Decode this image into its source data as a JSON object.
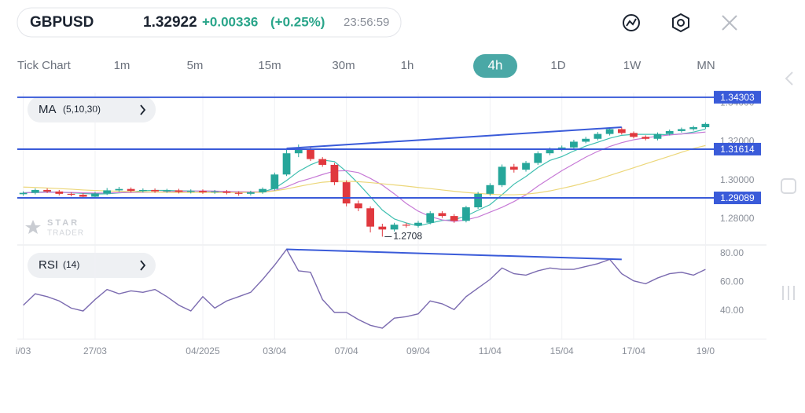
{
  "header": {
    "symbol": "GBPUSD",
    "price": "1.32922",
    "change": "+0.00336",
    "change_pct": "(+0.25%)",
    "time": "23:56:59"
  },
  "timeframes": {
    "items": [
      "Tick Chart",
      "1m",
      "5m",
      "15m",
      "30m",
      "1h",
      "4h",
      "1D",
      "1W",
      "MN"
    ],
    "active": "4h"
  },
  "watermark": {
    "line1": "STAR",
    "line2": "TRADER"
  },
  "chart_data": [
    {
      "type": "candlestick",
      "legend": {
        "label": "MA",
        "params": "(5,10,30)"
      },
      "categories": [
        "i/03",
        null,
        null,
        null,
        null,
        null,
        "27/03",
        null,
        null,
        null,
        null,
        null,
        null,
        null,
        null,
        "04/2025",
        null,
        null,
        null,
        null,
        null,
        "03/04",
        null,
        null,
        null,
        null,
        null,
        "07/04",
        null,
        null,
        null,
        null,
        null,
        "09/04",
        null,
        null,
        null,
        null,
        null,
        "11/04",
        null,
        null,
        null,
        null,
        null,
        "15/04",
        null,
        null,
        null,
        null,
        null,
        "17/04",
        null,
        null,
        null,
        null,
        null,
        "19/0"
      ],
      "open": [
        1.2928,
        1.2935,
        1.295,
        1.2942,
        1.293,
        1.2925,
        1.2915,
        1.2932,
        1.2948,
        1.2955,
        1.2945,
        1.295,
        1.2943,
        1.2948,
        1.294,
        1.2945,
        1.2938,
        1.2942,
        1.2935,
        1.293,
        1.2938,
        1.2955,
        1.303,
        1.314,
        1.3165,
        1.311,
        1.308,
        1.299,
        1.288,
        1.2855,
        1.276,
        1.2745,
        1.277,
        1.2765,
        1.278,
        1.283,
        1.2815,
        1.279,
        1.286,
        1.293,
        1.2975,
        1.307,
        1.3055,
        1.309,
        1.314,
        1.316,
        1.317,
        1.32,
        1.3215,
        1.324,
        1.3265,
        1.3245,
        1.3225,
        1.3215,
        1.324,
        1.3255,
        1.3265,
        1.3275
      ],
      "high": [
        1.2943,
        1.2958,
        1.2958,
        1.295,
        1.2938,
        1.2933,
        1.294,
        1.296,
        1.2966,
        1.2963,
        1.2958,
        1.2958,
        1.2956,
        1.2956,
        1.2953,
        1.2953,
        1.295,
        1.295,
        1.2943,
        1.2946,
        1.2963,
        1.304,
        1.316,
        1.3185,
        1.3175,
        1.312,
        1.309,
        1.3,
        1.2895,
        1.2865,
        1.2775,
        1.278,
        1.278,
        1.279,
        1.284,
        1.284,
        1.2825,
        1.2868,
        1.294,
        1.2985,
        1.3082,
        1.3085,
        1.31,
        1.315,
        1.317,
        1.318,
        1.321,
        1.3225,
        1.325,
        1.3275,
        1.3275,
        1.3253,
        1.3233,
        1.3248,
        1.3263,
        1.3273,
        1.3283,
        1.33
      ],
      "low": [
        1.292,
        1.2927,
        1.2934,
        1.2922,
        1.2917,
        1.2905,
        1.2907,
        1.2924,
        1.294,
        1.2937,
        1.2937,
        1.2935,
        1.2935,
        1.2932,
        1.2932,
        1.293,
        1.293,
        1.2927,
        1.292,
        1.2922,
        1.293,
        1.2947,
        1.3022,
        1.312,
        1.31,
        1.307,
        1.2975,
        1.2865,
        1.284,
        1.273,
        1.2708,
        1.2735,
        1.2755,
        1.2755,
        1.2772,
        1.2805,
        1.278,
        1.2782,
        1.2852,
        1.292,
        1.2965,
        1.304,
        1.3045,
        1.308,
        1.313,
        1.315,
        1.3162,
        1.3192,
        1.3207,
        1.3232,
        1.3237,
        1.3217,
        1.3207,
        1.3207,
        1.3232,
        1.3247,
        1.3257,
        1.3267
      ],
      "close": [
        1.2935,
        1.295,
        1.2942,
        1.293,
        1.2925,
        1.2915,
        1.2932,
        1.2948,
        1.2955,
        1.2945,
        1.295,
        1.2943,
        1.2948,
        1.294,
        1.2945,
        1.2938,
        1.2942,
        1.2935,
        1.293,
        1.2938,
        1.2955,
        1.303,
        1.314,
        1.3165,
        1.311,
        1.308,
        1.299,
        1.288,
        1.2855,
        1.276,
        1.2745,
        1.277,
        1.2765,
        1.278,
        1.283,
        1.2815,
        1.279,
        1.286,
        1.293,
        1.2975,
        1.307,
        1.3055,
        1.309,
        1.314,
        1.316,
        1.317,
        1.32,
        1.3215,
        1.324,
        1.3265,
        1.3245,
        1.3225,
        1.3215,
        1.324,
        1.3255,
        1.3265,
        1.3275,
        1.3292
      ],
      "color_up": "#26a69a",
      "color_down": "#e0383e",
      "series": [
        {
          "color": "#3fbfb0",
          "values": [
            1.2935,
            1.2938,
            1.294,
            1.2938,
            1.2936,
            1.2932,
            1.2929,
            1.293,
            1.2935,
            1.2939,
            1.2946,
            1.2948,
            1.2948,
            1.2945,
            1.2945,
            1.2943,
            1.2943,
            1.294,
            1.2938,
            1.2937,
            1.294,
            1.2958,
            1.2999,
            1.3046,
            1.308,
            1.3105,
            1.3097,
            1.3045,
            1.2983,
            1.2915,
            1.2846,
            1.28,
            1.2779,
            1.2764,
            1.2778,
            1.2792,
            1.2796,
            1.2815,
            1.2845,
            1.2874,
            1.2925,
            1.298,
            1.302,
            1.3066,
            1.3103,
            1.3123,
            1.3152,
            1.3177,
            1.3197,
            1.3218,
            1.3233,
            1.3238,
            1.3238,
            1.3238,
            1.3236,
            1.324,
            1.325,
            1.3265
          ]
        },
        {
          "color": "#c77ad6",
          "values": [
            1.2935,
            1.2937,
            1.2938,
            1.2938,
            1.2937,
            1.2935,
            1.2934,
            1.2934,
            1.2936,
            1.2937,
            1.2938,
            1.2939,
            1.2941,
            1.2942,
            1.2944,
            1.2945,
            1.2944,
            1.2942,
            1.2941,
            1.294,
            1.294,
            1.2947,
            1.2966,
            1.2992,
            1.301,
            1.303,
            1.3048,
            1.305,
            1.304,
            1.301,
            1.2975,
            1.293,
            1.288,
            1.284,
            1.2812,
            1.2795,
            1.2787,
            1.2795,
            1.281,
            1.2835,
            1.286,
            1.289,
            1.2925,
            1.297,
            1.301,
            1.305,
            1.3085,
            1.312,
            1.315,
            1.3175,
            1.3195,
            1.321,
            1.322,
            1.3228,
            1.3235,
            1.324,
            1.3244,
            1.325
          ]
        },
        {
          "color": "#ecd77a",
          "values": [
            1.2965,
            1.2963,
            1.296,
            1.2957,
            1.2954,
            1.295,
            1.2947,
            1.2945,
            1.2943,
            1.2941,
            1.294,
            1.2939,
            1.2938,
            1.2937,
            1.2937,
            1.2937,
            1.2937,
            1.2937,
            1.2937,
            1.2937,
            1.2938,
            1.2945,
            1.2955,
            1.2968,
            1.298,
            1.299,
            1.2995,
            1.2995,
            1.2993,
            1.2988,
            1.2982,
            1.2976,
            1.297,
            1.2963,
            1.2957,
            1.295,
            1.2943,
            1.2937,
            1.2932,
            1.2928,
            1.2925,
            1.2925,
            1.2928,
            1.2935,
            1.2945,
            1.2958,
            1.2972,
            1.2988,
            1.3005,
            1.3025,
            1.3045,
            1.3065,
            1.3085,
            1.3105,
            1.3125,
            1.3145,
            1.3165,
            1.318
          ]
        }
      ],
      "hlines": [
        1.34303,
        1.31614,
        1.29089
      ],
      "hline_color": "#3a5bd9",
      "trendlines": [
        {
          "x": [
            22,
            50
          ],
          "y": [
            1.3165,
            1.3275
          ]
        }
      ],
      "annotations": [
        {
          "text": "1.2708",
          "index": 30,
          "value": 1.2708
        }
      ],
      "ylim": [
        1.2665,
        1.3454
      ],
      "yticks": [
        {
          "value": 1.28,
          "label": "1.28000"
        },
        {
          "value": 1.3,
          "label": "1.30000"
        },
        {
          "value": 1.32,
          "label": "1.32000"
        },
        {
          "value": 1.34,
          "label": "1.34000"
        }
      ],
      "grid": true
    },
    {
      "type": "line",
      "legend": {
        "label": "RSI",
        "params": "(14)"
      },
      "series": [
        {
          "color": "#7b6bb0",
          "values": [
            44,
            52,
            50,
            47,
            42,
            40,
            48,
            55,
            52,
            54,
            53,
            55,
            50,
            44,
            40,
            50,
            42,
            47,
            50,
            53,
            62,
            72,
            83,
            68,
            67,
            48,
            39,
            39,
            34,
            30,
            28,
            35,
            36,
            38,
            47,
            45,
            41,
            50,
            56,
            62,
            70,
            66,
            65,
            68,
            70,
            69,
            69,
            71,
            73,
            76,
            66,
            61,
            59,
            63,
            66,
            67,
            65,
            69
          ]
        }
      ],
      "trendlines": [
        {
          "x": [
            22,
            50
          ],
          "y": [
            83,
            76
          ]
        }
      ],
      "trendline_color": "#3a5bd9",
      "ylim": [
        21.4,
        84.4
      ],
      "yticks": [
        {
          "value": 40,
          "label": "40.00"
        },
        {
          "value": 60,
          "label": "60.00"
        },
        {
          "value": 80,
          "label": "80.00"
        }
      ]
    }
  ]
}
